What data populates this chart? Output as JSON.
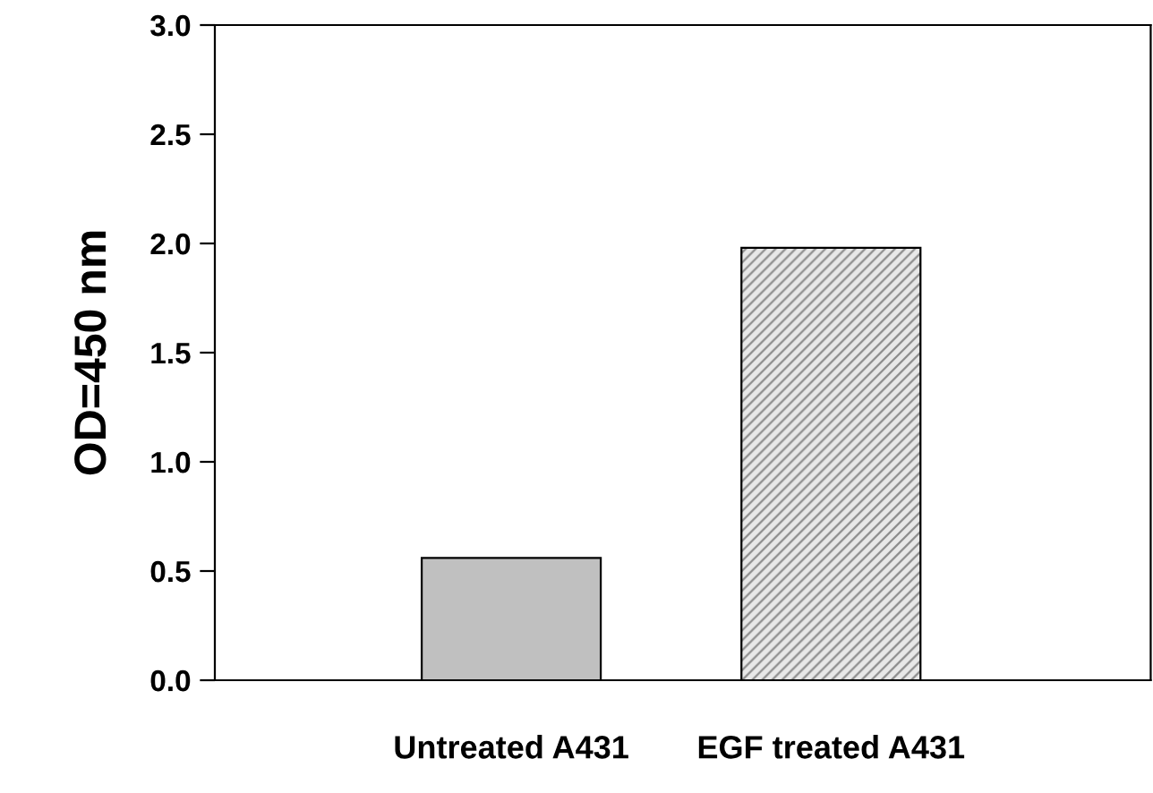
{
  "chart_data": {
    "type": "bar",
    "ylabel": "OD=450 nm",
    "categories": [
      "Untreated A431",
      "EGF treated A431"
    ],
    "values": [
      0.56,
      1.98
    ],
    "colors": [
      "#c0c0c0",
      "#8c8c8c"
    ],
    "ylim": [
      0,
      3.0
    ],
    "yticks": [
      {
        "value": 0,
        "label": "0.0"
      },
      {
        "value": 0.5,
        "label": "0.5"
      },
      {
        "value": 1.0,
        "label": "1.0"
      },
      {
        "value": 1.5,
        "label": "1.5"
      },
      {
        "value": 2.0,
        "label": "2.0"
      },
      {
        "value": 2.5,
        "label": "2.5"
      },
      {
        "value": 3.0,
        "label": "3.0"
      }
    ],
    "grid": false
  }
}
